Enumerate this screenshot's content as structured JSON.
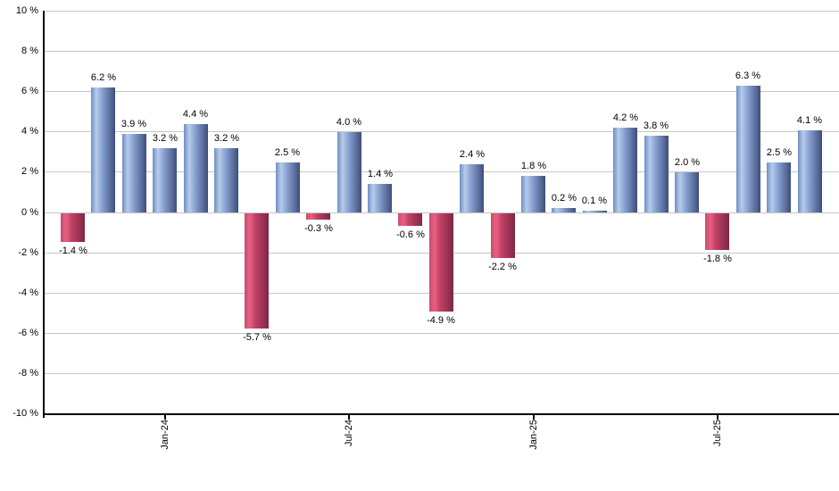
{
  "chart_data": {
    "type": "bar",
    "title": "",
    "xlabel": "",
    "ylabel": "",
    "ylim": [
      -10,
      10
    ],
    "grid": true,
    "y_tick_labels": [
      "10 %",
      "8 %",
      "6 %",
      "4 %",
      "2 %",
      "0 %",
      "-2 %",
      "-4 %",
      "-6 %",
      "-8 %",
      "-10 %"
    ],
    "y_tick_values": [
      10,
      8,
      6,
      4,
      2,
      0,
      -2,
      -4,
      -6,
      -8,
      -10
    ],
    "bars": [
      {
        "value": -1.4,
        "label": "-1.4 %"
      },
      {
        "value": 6.2,
        "label": "6.2 %"
      },
      {
        "value": 3.9,
        "label": "3.9 %"
      },
      {
        "value": 3.2,
        "label": "3.2 %"
      },
      {
        "value": 4.4,
        "label": "4.4 %"
      },
      {
        "value": 3.2,
        "label": "3.2 %"
      },
      {
        "value": -5.7,
        "label": "-5.7 %"
      },
      {
        "value": 2.5,
        "label": "2.5 %"
      },
      {
        "value": -0.3,
        "label": "-0.3 %"
      },
      {
        "value": 4.0,
        "label": "4.0 %"
      },
      {
        "value": 1.4,
        "label": "1.4 %"
      },
      {
        "value": -0.6,
        "label": "-0.6 %"
      },
      {
        "value": -4.9,
        "label": "-4.9 %"
      },
      {
        "value": 2.4,
        "label": "2.4 %"
      },
      {
        "value": -2.2,
        "label": "-2.2 %"
      },
      {
        "value": 1.8,
        "label": "1.8 %"
      },
      {
        "value": 0.2,
        "label": "0.2 %"
      },
      {
        "value": 0.1,
        "label": "0.1 %"
      },
      {
        "value": 4.2,
        "label": "4.2 %"
      },
      {
        "value": 3.8,
        "label": "3.8 %"
      },
      {
        "value": 2.0,
        "label": "2.0 %"
      },
      {
        "value": -1.8,
        "label": "-1.8 %"
      },
      {
        "value": 6.3,
        "label": "6.3 %"
      },
      {
        "value": 2.5,
        "label": "2.5 %"
      },
      {
        "value": 4.1,
        "label": "4.1 %"
      }
    ],
    "x_ticks": [
      {
        "label": "Jan-24",
        "bar_index": 3
      },
      {
        "label": "Jul-24",
        "bar_index": 9
      },
      {
        "label": "Jan-25",
        "bar_index": 15
      },
      {
        "label": "Jul-25",
        "bar_index": 21
      }
    ],
    "colors": {
      "positive_edge": "#3f4e7b",
      "positive_light": "#b7ccea",
      "positive_base": "#6e8ec5",
      "negative_edge": "#7e2844",
      "negative_light": "#e86084",
      "negative_base": "#c94d6d",
      "gridline": "#c6c6c6",
      "axis": "#000000",
      "background": "#ffffff"
    },
    "legend": null
  }
}
